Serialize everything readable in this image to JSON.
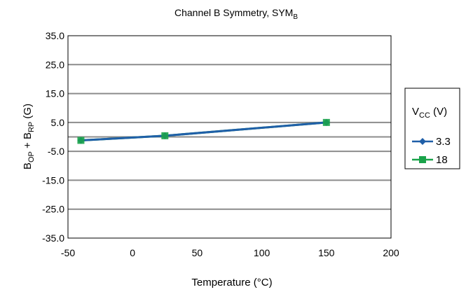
{
  "chart_data": {
    "type": "line",
    "title": {
      "main": "Channel B Symmetry, SYM",
      "subscript": "B"
    },
    "xlabel": "Temperature (°C)",
    "ylabel": {
      "part1": "B",
      "sub1": "OP",
      "part2": " + B",
      "sub2": "RP",
      "part3": " (G)"
    },
    "xlim": [
      -50,
      200
    ],
    "ylim": [
      -35,
      35
    ],
    "xticks": [
      "-50",
      "0",
      "50",
      "100",
      "150",
      "200"
    ],
    "xtick_values": [
      -50,
      0,
      50,
      100,
      150,
      200
    ],
    "yticks": [
      "35.0",
      "25.0",
      "15.0",
      "5.0",
      "-5.0",
      "-15.0",
      "-25.0",
      "-35.0"
    ],
    "ytick_values": [
      35,
      25,
      15,
      5,
      -5,
      -15,
      -25,
      -35
    ],
    "grid": "horizontal",
    "legend": {
      "title_main": "V",
      "title_sub": "CC",
      "title_unit": " (V)",
      "placement": "right"
    },
    "series": [
      {
        "name": "3.3",
        "color": "#1f5fa8",
        "marker": "diamond",
        "x": [
          -40,
          25,
          150
        ],
        "y": [
          -1.2,
          0.4,
          5.0
        ]
      },
      {
        "name": "18",
        "color": "#1aa34a",
        "marker": "square",
        "x": [
          -40,
          25,
          150
        ],
        "y": [
          -1.2,
          0.4,
          5.0
        ]
      }
    ]
  }
}
